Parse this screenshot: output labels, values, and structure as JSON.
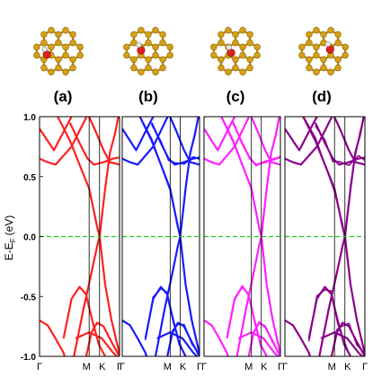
{
  "figure": {
    "panel_labels": [
      "(a)",
      "(b)",
      "(c)",
      "(d)"
    ],
    "y_axis_label": "E-E",
    "y_axis_label_sub": "F",
    "y_axis_unit": "(eV)",
    "k_point_labels": [
      "Γ",
      "M",
      "K",
      "Γ"
    ],
    "band_colors": [
      "#ff2020",
      "#1a1aff",
      "#ff20ff",
      "#8b008b"
    ],
    "fermi_line_color": "#22cc22",
    "atom_color": "#d4a017",
    "bond_color": "#b8860b",
    "adsorbate_colors": {
      "oxygen": "#e02020",
      "hydrogen": "#e8e8e8"
    }
  },
  "chart_data": [
    {
      "type": "line",
      "panel": "(a)",
      "title": "",
      "xlabel": "",
      "ylabel": "E-EF (eV)",
      "x_ticks": [
        "Γ",
        "M",
        "K",
        "Γ"
      ],
      "ylim": [
        -1.0,
        1.0
      ],
      "y_ticks": [
        "-1.0",
        "-0.5",
        "0.0",
        "0.5",
        "1.0"
      ],
      "fermi_level": 0.0
    },
    {
      "type": "line",
      "panel": "(b)",
      "title": "",
      "xlabel": "",
      "ylabel": "",
      "x_ticks": [
        "Γ",
        "M",
        "K",
        "Γ"
      ],
      "ylim": [
        -1.0,
        1.0
      ],
      "fermi_level": 0.0
    },
    {
      "type": "line",
      "panel": "(c)",
      "title": "",
      "xlabel": "",
      "ylabel": "",
      "x_ticks": [
        "Γ",
        "M",
        "K",
        "Γ"
      ],
      "ylim": [
        -1.0,
        1.0
      ],
      "fermi_level": 0.0
    },
    {
      "type": "line",
      "panel": "(d)",
      "title": "",
      "xlabel": "",
      "ylabel": "",
      "x_ticks": [
        "Γ",
        "M",
        "K",
        "Γ"
      ],
      "ylim": [
        -1.0,
        1.0
      ],
      "fermi_level": 0.0
    }
  ]
}
